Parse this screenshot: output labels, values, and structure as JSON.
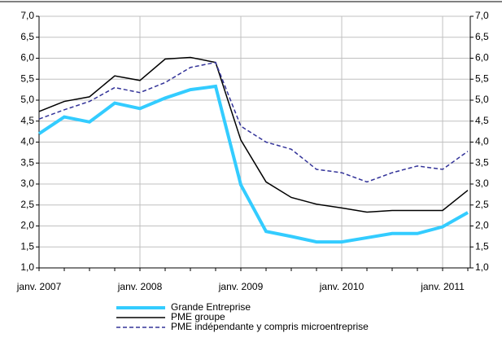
{
  "chart_data": {
    "type": "line",
    "categories": [
      "janv. 2007",
      null,
      null,
      null,
      "janv. 2008",
      null,
      null,
      null,
      "janv. 2009",
      null,
      null,
      null,
      "janv. 2010",
      null,
      null,
      null,
      "janv. 2011",
      null
    ],
    "series": [
      {
        "name": "Grande Entreprise",
        "color": "#33ccff",
        "values": [
          4.2,
          4.6,
          4.48,
          4.93,
          4.8,
          5.05,
          5.25,
          5.33,
          2.98,
          1.87,
          1.75,
          1.62,
          1.62,
          1.72,
          1.82,
          1.82,
          1.98,
          2.32
        ]
      },
      {
        "name": "PME groupe",
        "color": "#000000",
        "values": [
          4.73,
          4.97,
          5.08,
          5.58,
          5.47,
          5.98,
          6.02,
          5.9,
          4.05,
          3.05,
          2.68,
          2.52,
          2.43,
          2.33,
          2.37,
          2.37,
          2.37,
          2.85
        ]
      },
      {
        "name": "PME indépendante  y compris microentreprise",
        "color": "#333399",
        "dashed": true,
        "values": [
          4.55,
          4.77,
          4.97,
          5.3,
          5.18,
          5.42,
          5.78,
          5.9,
          4.38,
          4.0,
          3.83,
          3.35,
          3.27,
          3.05,
          3.27,
          3.43,
          3.35,
          3.78
        ]
      }
    ],
    "ylim": [
      1,
      7
    ],
    "yticks": [
      {
        "value": 1,
        "label": "1,0"
      },
      {
        "value": 1.5,
        "label": "1,5"
      },
      {
        "value": 2,
        "label": "2,0"
      },
      {
        "value": 2.5,
        "label": "2,5"
      },
      {
        "value": 3,
        "label": "3,0"
      },
      {
        "value": 3.5,
        "label": "3,5"
      },
      {
        "value": 4,
        "label": "4,0"
      },
      {
        "value": 4.5,
        "label": "4,5"
      },
      {
        "value": 5,
        "label": "5,0"
      },
      {
        "value": 5.5,
        "label": "5,5"
      },
      {
        "value": 6,
        "label": "6,0"
      },
      {
        "value": 6.5,
        "label": "6,5"
      },
      {
        "value": 7,
        "label": "7,0"
      }
    ],
    "y2lim": [
      1,
      7
    ],
    "y2ticks": [
      {
        "value": 1,
        "label": "1,0"
      },
      {
        "value": 1.5,
        "label": "1,5"
      },
      {
        "value": 2,
        "label": "2,0"
      },
      {
        "value": 2.5,
        "label": "2,5"
      },
      {
        "value": 3,
        "label": "3,0"
      },
      {
        "value": 3.5,
        "label": "3,5"
      },
      {
        "value": 4,
        "label": "4,0"
      },
      {
        "value": 4.5,
        "label": "4,5"
      },
      {
        "value": 5,
        "label": "5,0"
      },
      {
        "value": 5.5,
        "label": "5,5"
      },
      {
        "value": 6,
        "label": "6,0"
      },
      {
        "value": 6.5,
        "label": "6,5"
      },
      {
        "value": 7,
        "label": "7,0"
      }
    ],
    "grid": true
  }
}
